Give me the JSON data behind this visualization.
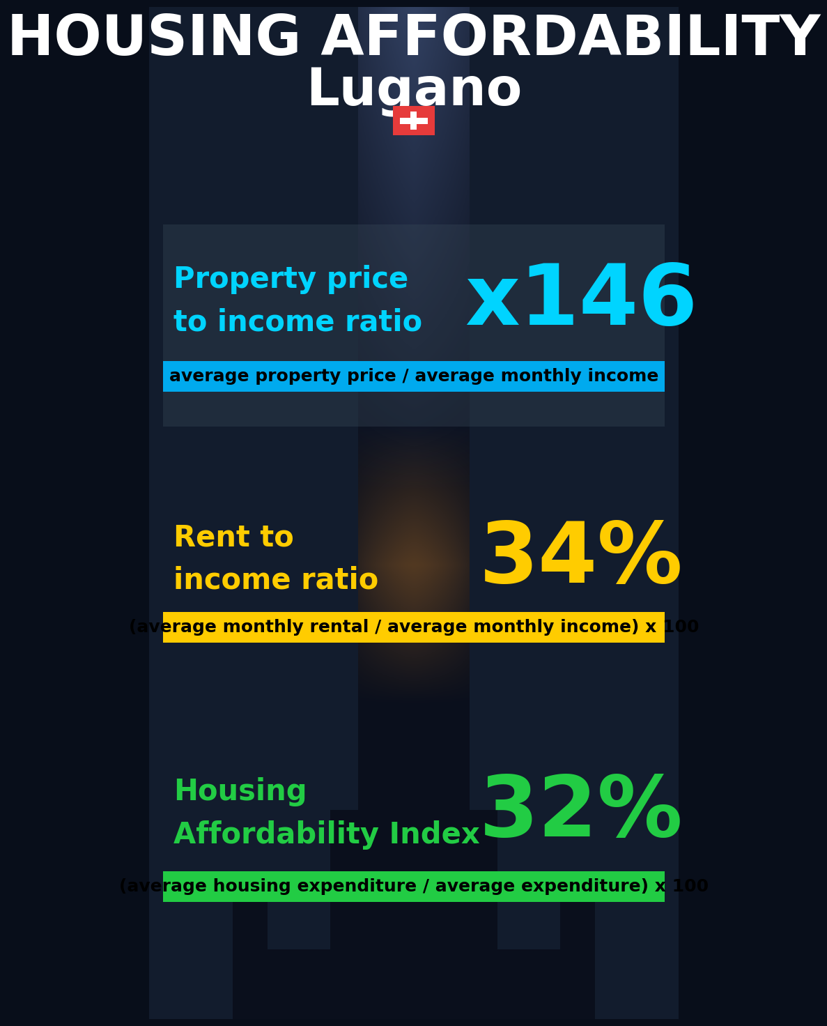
{
  "title_main": "HOUSING AFFORDABILITY",
  "title_city": "Lugano",
  "bg_color": "#080e1a",
  "section1_label": "Property price\nto income ratio",
  "section1_value": "x146",
  "section1_label_color": "#00d4ff",
  "section1_value_color": "#00d4ff",
  "section1_banner_text": "average property price / average monthly income",
  "section1_banner_bg": "#00aaee",
  "section2_label": "Rent to\nincome ratio",
  "section2_value": "34%",
  "section2_label_color": "#ffcc00",
  "section2_value_color": "#ffcc00",
  "section2_banner_text": "(average monthly rental / average monthly income) x 100",
  "section2_banner_bg": "#ffcc00",
  "section3_label": "Housing\nAffordability Index",
  "section3_value": "32%",
  "section3_label_color": "#22cc44",
  "section3_value_color": "#22cc44",
  "section3_banner_text": "(average housing expenditure / average expenditure) x 100",
  "section3_banner_bg": "#22cc44",
  "flag_bg": "#e63b3b",
  "flag_cross": "#ffffff",
  "title_fontsize": 58,
  "city_fontsize": 54,
  "label_fontsize": 30,
  "value_fontsize": 88,
  "banner_fontsize": 18
}
